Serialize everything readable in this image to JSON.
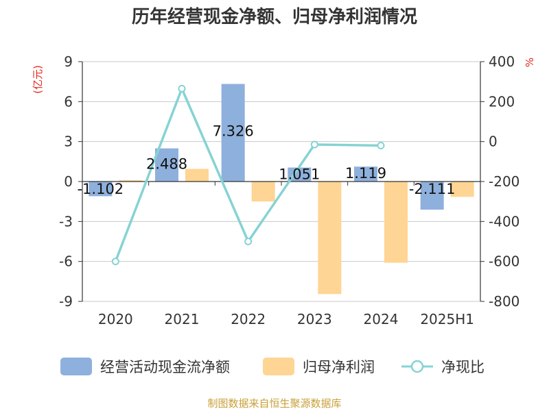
{
  "title": "历年经营现金净额、归母净利润情况",
  "source": "制图数据来自恒生聚源数据库",
  "chart_data": {
    "type": "bar",
    "categories": [
      "2020",
      "2021",
      "2022",
      "2023",
      "2024",
      "2025H1"
    ],
    "left_axis": {
      "unit": "(亿元)",
      "ticks": [
        "9",
        "6",
        "3",
        "0",
        "-3",
        "-6",
        "-9"
      ],
      "ylim": [
        -9,
        9
      ]
    },
    "right_axis": {
      "unit": "%",
      "ticks": [
        "400",
        "200",
        "0",
        "-200",
        "-400",
        "-600",
        "-800"
      ],
      "ylim": [
        -800,
        400
      ]
    },
    "grid": true,
    "legend_position": "bottom",
    "series": [
      {
        "name": "经营活动现金流净额",
        "type": "bar",
        "axis": "left",
        "color": "#8eb0dc",
        "values": [
          -1.102,
          2.488,
          7.326,
          1.051,
          1.119,
          -2.111
        ],
        "labels": [
          "-1.102",
          "2.488",
          "7.326",
          "1.051",
          "1.119",
          "-2.111"
        ]
      },
      {
        "name": "归母净利润",
        "type": "bar",
        "axis": "left",
        "color": "#fed594",
        "values": [
          0.1,
          0.95,
          -1.5,
          -8.45,
          -6.1,
          -1.15
        ]
      },
      {
        "name": "净现比",
        "type": "line",
        "axis": "right",
        "color": "#86d3d4",
        "values": [
          -600,
          265,
          -500,
          -15,
          -20,
          null
        ]
      }
    ]
  }
}
